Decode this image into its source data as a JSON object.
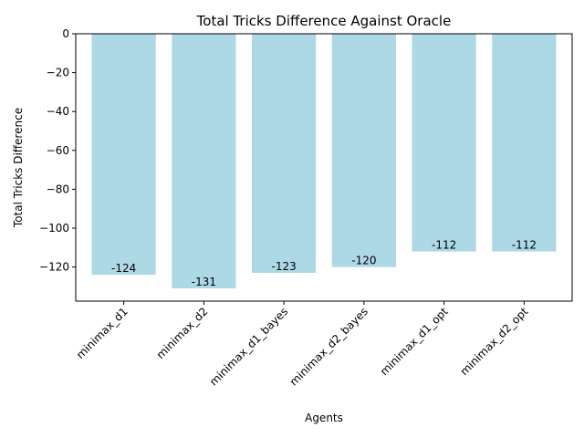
{
  "chart_data": {
    "type": "bar",
    "title": "Total Tricks Difference Against Oracle",
    "xlabel": "Agents",
    "ylabel": "Total Tricks Difference",
    "categories": [
      "minimax_d1",
      "minimax_d2",
      "minimax_d1_bayes",
      "minimax_d2_bayes",
      "minimax_d1_opt",
      "minimax_d2_opt"
    ],
    "values": [
      -124,
      -131,
      -123,
      -120,
      -112,
      -112
    ],
    "data_labels": [
      "-124",
      "-131",
      "-123",
      "-120",
      "-112",
      "-112"
    ],
    "ylim": [
      -137.55,
      0
    ],
    "yticks": [
      0,
      -20,
      -40,
      -60,
      -80,
      -100,
      -120
    ],
    "ytick_labels": [
      "0",
      "−20",
      "−40",
      "−60",
      "−80",
      "−100",
      "−120"
    ],
    "bar_color": "#add8e6",
    "grid": false,
    "legend": "none"
  }
}
